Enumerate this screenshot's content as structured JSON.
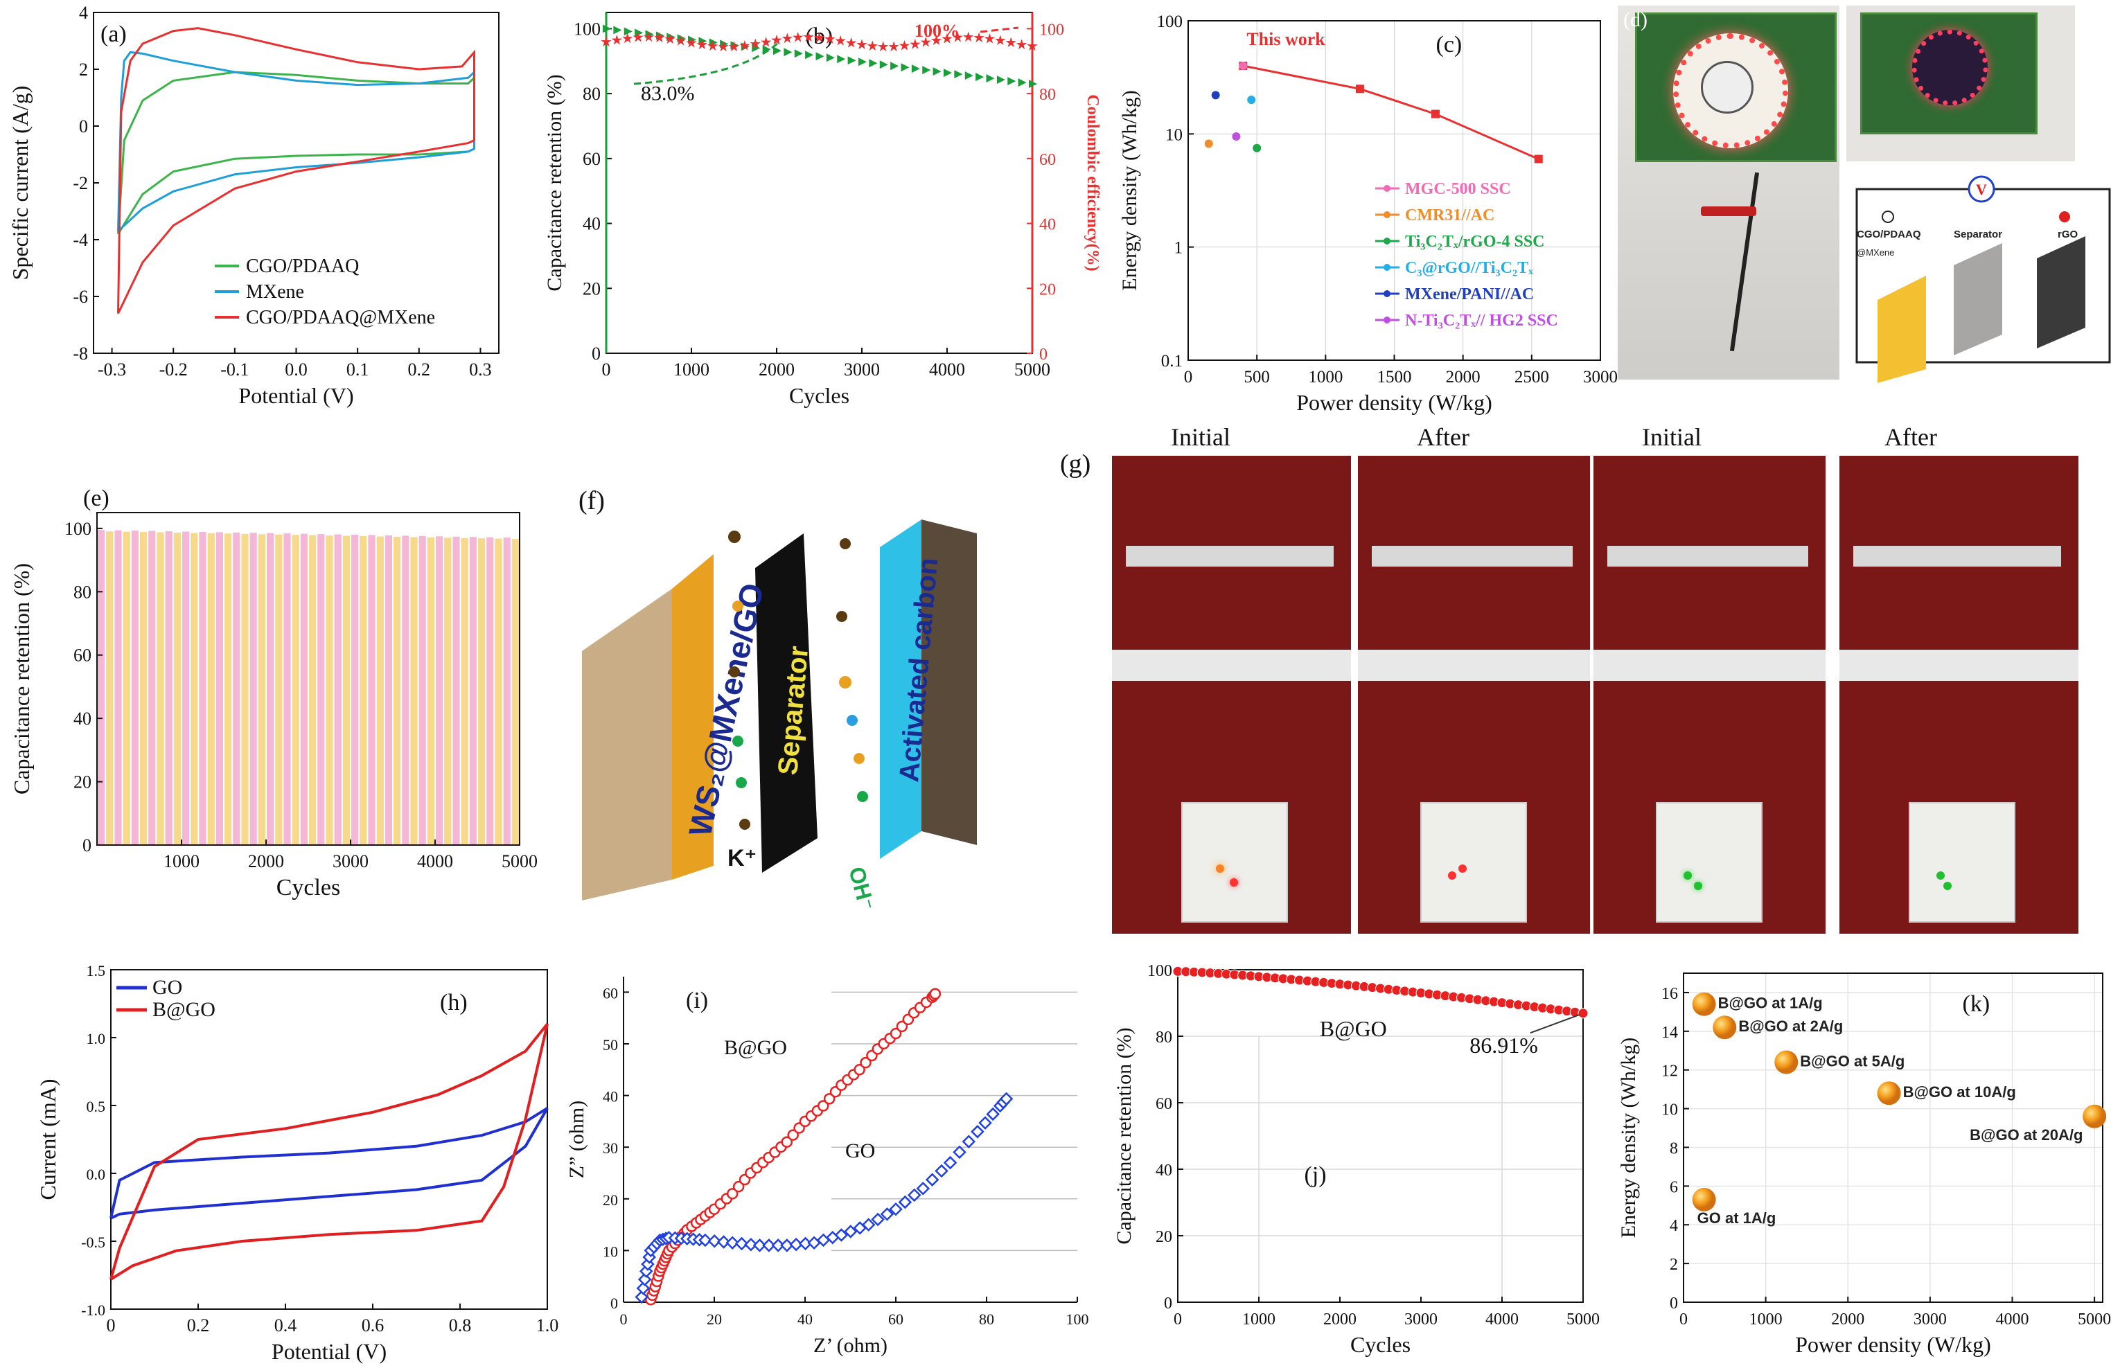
{
  "charts": {
    "a": {
      "label": "(a)",
      "chart_data": {
        "type": "line",
        "title": "",
        "xlabel": "Potential (V)",
        "ylabel": "Specific current (A/g)",
        "xlim": [
          -0.3,
          0.3
        ],
        "ylim": [
          -8,
          4
        ],
        "xticks": [
          "-0.3",
          "-0.2",
          "-0.1",
          "0.0",
          "0.1",
          "0.2",
          "0.3"
        ],
        "yticks": [
          "-8",
          "-6",
          "-4",
          "-2",
          "0",
          "2",
          "4"
        ],
        "series": [
          {
            "name": "CGO/PDAAQ",
            "color": "#3cb44b",
            "x": [
              -0.29,
              -0.28,
              -0.25,
              -0.2,
              -0.1,
              0.0,
              0.1,
              0.2,
              0.28,
              0.29,
              0.29,
              0.28,
              0.2,
              0.1,
              0.0,
              -0.1,
              -0.2,
              -0.25,
              -0.29
            ],
            "y": [
              -3.8,
              -0.5,
              0.9,
              1.6,
              1.9,
              1.8,
              1.6,
              1.5,
              1.5,
              1.7,
              -0.8,
              -0.9,
              -1.0,
              -1.0,
              -1.05,
              -1.15,
              -1.6,
              -2.4,
              -3.8
            ]
          },
          {
            "name": "MXene",
            "color": "#1e9fd8",
            "x": [
              -0.29,
              -0.285,
              -0.28,
              -0.27,
              -0.25,
              -0.2,
              -0.1,
              0.0,
              0.1,
              0.2,
              0.28,
              0.29,
              0.29,
              0.28,
              0.2,
              0.1,
              0.0,
              -0.1,
              -0.2,
              -0.25,
              -0.29
            ],
            "y": [
              -3.7,
              1.0,
              2.3,
              2.6,
              2.55,
              2.3,
              1.9,
              1.6,
              1.45,
              1.5,
              1.7,
              1.9,
              -0.8,
              -0.9,
              -1.1,
              -1.3,
              -1.45,
              -1.7,
              -2.3,
              -2.9,
              -3.7
            ]
          },
          {
            "name": "CGO/PDAAQ@MXene",
            "color": "#e83030",
            "x": [
              -0.29,
              -0.285,
              -0.27,
              -0.25,
              -0.2,
              -0.16,
              -0.1,
              0.0,
              0.1,
              0.2,
              0.27,
              0.29,
              0.29,
              0.28,
              0.2,
              0.1,
              0.0,
              -0.1,
              -0.2,
              -0.25,
              -0.29
            ],
            "y": [
              -6.6,
              0.5,
              2.3,
              2.9,
              3.35,
              3.45,
              3.2,
              2.7,
              2.25,
              2.0,
              2.1,
              2.6,
              -0.5,
              -0.6,
              -0.9,
              -1.25,
              -1.6,
              -2.2,
              -3.5,
              -4.8,
              -6.6
            ]
          }
        ]
      }
    },
    "b": {
      "label": "(b)",
      "chart_data": {
        "type": "scatter",
        "xlabel": "Cycles",
        "ylabel": "Capacitance retention (%)",
        "y2label": "Coulombic efficiency(%)",
        "xlim": [
          0,
          5000
        ],
        "ylim": [
          0,
          105
        ],
        "y2lim": [
          0,
          105
        ],
        "xticks": [
          "0",
          "1000",
          "2000",
          "3000",
          "4000",
          "5000"
        ],
        "yticks": [
          "0",
          "20",
          "40",
          "60",
          "80",
          "100"
        ],
        "annotations": [
          "83.0%",
          "100%"
        ],
        "series": [
          {
            "name": "Capacitance retention",
            "color": "#1a9e3a",
            "marker": "triangle",
            "x": [
              0,
              500,
              1000,
              1500,
              2000,
              2500,
              3000,
              3500,
              4000,
              4500,
              5000
            ],
            "y": [
              100,
              98,
              96,
              94,
              93,
              92,
              90,
              88,
              86,
              85,
              83
            ]
          },
          {
            "name": "Coulombic efficiency",
            "color": "#e83030",
            "marker": "star",
            "x": [
              0,
              500,
              1000,
              1500,
              2000,
              2500,
              3000,
              3500,
              4000,
              4500,
              5000
            ],
            "y": [
              99,
              97,
              96,
              95,
              95,
              96,
              97,
              96,
              96,
              96,
              96
            ]
          }
        ]
      }
    },
    "c": {
      "label": "(c)",
      "chart_data": {
        "type": "scatter",
        "xlabel": "Power density (W/kg)",
        "ylabel": "Energy density (Wh/kg)",
        "xlim": [
          0,
          3000
        ],
        "ylim_log": [
          0.1,
          100
        ],
        "xticks": [
          "0",
          "500",
          "1000",
          "1500",
          "2000",
          "2500",
          "3000"
        ],
        "yticks": [
          "0.1",
          "1",
          "10",
          "100"
        ],
        "this_work_label": "This work",
        "this_work": {
          "x": [
            400,
            1250,
            1800,
            2550
          ],
          "y": [
            40,
            25,
            15,
            6
          ]
        },
        "others": [
          {
            "name": "MGC-500 SSC",
            "color": "#f06ab4",
            "x": 400,
            "y": 40
          },
          {
            "name": "CMR31//AC",
            "color": "#f08c2a",
            "x": 150,
            "y": 8.2
          },
          {
            "name": "Ti₃C₂Tₓ/rGO-4 SSC",
            "color": "#1ea84a",
            "x": 500,
            "y": 7.5
          },
          {
            "name": "C₃@rGO//Ti₃C₂Tₓ",
            "color": "#22aee8",
            "x": 460,
            "y": 20
          },
          {
            "name": "MXene/PANI//AC",
            "color": "#1f3fbf",
            "x": 200,
            "y": 22
          },
          {
            "name": "N-Ti₃C₂Tₓ// HG2 SSC",
            "color": "#c04ee0",
            "x": 350,
            "y": 9.5
          }
        ]
      }
    },
    "e": {
      "label": "(e)",
      "chart_data": {
        "type": "bar",
        "xlabel": "Cycles",
        "ylabel": "Capacitance retention (%)",
        "xlim": [
          0,
          5000
        ],
        "ylim": [
          0,
          105
        ],
        "xticks": [
          "1000",
          "2000",
          "3000",
          "4000",
          "5000"
        ],
        "yticks": [
          "0",
          "20",
          "40",
          "60",
          "80",
          "100"
        ],
        "colors": [
          "#f4b8d6",
          "#f6d98a"
        ],
        "x": [
          100,
          300,
          500,
          700,
          900,
          1100,
          1300,
          1500,
          1700,
          1900,
          2100,
          2300,
          2500,
          2700,
          2900,
          3100,
          3300,
          3500,
          3700,
          3900,
          4100,
          4300,
          4500,
          4700,
          4900
        ],
        "values": [
          99.5,
          99.4,
          99.3,
          99.2,
          99.1,
          99.0,
          98.9,
          98.8,
          98.7,
          98.6,
          98.5,
          98.4,
          98.3,
          98.2,
          98.1,
          98.0,
          97.9,
          97.8,
          97.7,
          97.6,
          97.5,
          97.4,
          97.3,
          97.2,
          97.1
        ]
      }
    },
    "h": {
      "label": "(h)",
      "chart_data": {
        "type": "line",
        "xlabel": "Potential (V)",
        "ylabel": "Current (mA)",
        "xlim": [
          0,
          1.0
        ],
        "ylim": [
          -1.0,
          1.5
        ],
        "xticks": [
          "0",
          "0.2",
          "0.4",
          "0.6",
          "0.8",
          "1.0"
        ],
        "yticks": [
          "-1.0",
          "-0.5",
          "0.0",
          "0.5",
          "1.0",
          "1.5"
        ],
        "series": [
          {
            "name": "GO",
            "color": "#2030d0",
            "x": [
              0,
              0.02,
              0.1,
              0.3,
              0.5,
              0.7,
              0.85,
              0.95,
              1.0,
              1.0,
              0.95,
              0.85,
              0.7,
              0.5,
              0.3,
              0.1,
              0.02,
              0
            ],
            "y": [
              -0.33,
              -0.05,
              0.08,
              0.12,
              0.15,
              0.2,
              0.28,
              0.38,
              0.48,
              0.48,
              0.2,
              -0.05,
              -0.12,
              -0.17,
              -0.22,
              -0.27,
              -0.3,
              -0.33
            ]
          },
          {
            "name": "B@GO",
            "color": "#e02020",
            "x": [
              0,
              0.02,
              0.1,
              0.2,
              0.4,
              0.6,
              0.75,
              0.85,
              0.95,
              1.0,
              1.0,
              0.95,
              0.9,
              0.85,
              0.7,
              0.5,
              0.3,
              0.15,
              0.05,
              0
            ],
            "y": [
              -0.78,
              -0.55,
              0.05,
              0.25,
              0.33,
              0.45,
              0.58,
              0.72,
              0.9,
              1.1,
              1.1,
              0.4,
              -0.1,
              -0.35,
              -0.42,
              -0.45,
              -0.5,
              -0.57,
              -0.68,
              -0.78
            ]
          }
        ]
      }
    },
    "i": {
      "label": "(i)",
      "chart_data": {
        "type": "scatter",
        "xlabel": "Z’ (ohm)",
        "ylabel": "Z” (ohm)",
        "xlim": [
          0,
          100
        ],
        "ylim": [
          0,
          63
        ],
        "xticks": [
          "0",
          "20",
          "40",
          "60",
          "80",
          "100"
        ],
        "yticks": [
          "0",
          "10",
          "20",
          "30",
          "40",
          "50",
          "60"
        ],
        "series": [
          {
            "name": "B@GO",
            "color": "#e82020",
            "x": [
              6,
              7,
              8,
              9,
              10,
              12,
              14,
              17,
              20,
              24,
              28,
              32,
              36,
              40,
              44,
              48,
              52,
              56,
              60,
              64,
              68,
              69
            ],
            "y": [
              0.5,
              3,
              6,
              8,
              10,
              12,
              14,
              16,
              18,
              21,
              25,
              28,
              31,
              35,
              38,
              42,
              45,
              49,
              52,
              56,
              59,
              60
            ]
          },
          {
            "name": "GO",
            "color": "#2040e0",
            "x": [
              4,
              5,
              6,
              8,
              10,
              14,
              18,
              24,
              30,
              36,
              42,
              48,
              54,
              60,
              66,
              72,
              78,
              83,
              85
            ],
            "y": [
              1,
              6,
              10,
              12,
              12.5,
              12.3,
              12,
              11.5,
              11,
              11,
              11.5,
              13,
              15,
              18,
              22,
              27,
              33,
              38,
              40
            ]
          }
        ],
        "series_labels": [
          "B@GO",
          "GO"
        ]
      }
    },
    "j": {
      "label": "(j)",
      "chart_data": {
        "type": "scatter",
        "xlabel": "Cycles",
        "ylabel": "Capacitance retention (%)",
        "xlim": [
          0,
          5000
        ],
        "ylim": [
          0,
          100
        ],
        "xticks": [
          "0",
          "1000",
          "2000",
          "3000",
          "4000",
          "5000"
        ],
        "yticks": [
          "0",
          "20",
          "40",
          "60",
          "80",
          "100"
        ],
        "series_label": "B@GO",
        "annotation": "86.91%",
        "x": [
          0,
          200,
          400,
          600,
          800,
          1000,
          1200,
          1400,
          1600,
          1800,
          2000,
          2200,
          2400,
          2600,
          2800,
          3000,
          3200,
          3400,
          3600,
          3800,
          4000,
          4200,
          4400,
          4600,
          4800,
          5000
        ],
        "y": [
          99.5,
          99.2,
          98.9,
          98.5,
          98.1,
          97.7,
          97.2,
          96.7,
          96.2,
          95.6,
          95.0,
          94.4,
          93.8,
          93.2,
          92.6,
          92.0,
          91.4,
          90.8,
          90.2,
          89.6,
          89.0,
          88.5,
          88.0,
          87.5,
          87.1,
          86.91
        ]
      }
    },
    "k": {
      "label": "(k)",
      "chart_data": {
        "type": "scatter",
        "xlabel": "Power density (W/kg)",
        "ylabel": "Energy density (Wh/kg)",
        "xlim": [
          0,
          5100
        ],
        "ylim": [
          0,
          17
        ],
        "xticks": [
          "0",
          "1000",
          "2000",
          "3000",
          "4000",
          "5000"
        ],
        "yticks": [
          "0",
          "2",
          "4",
          "6",
          "8",
          "10",
          "12",
          "14",
          "16"
        ],
        "points": [
          {
            "label": "B@GO at 1A/g",
            "x": 250,
            "y": 15.4
          },
          {
            "label": "B@GO at 2A/g",
            "x": 500,
            "y": 14.2
          },
          {
            "label": "B@GO at 5A/g",
            "x": 1250,
            "y": 12.4
          },
          {
            "label": "B@GO at 10A/g",
            "x": 2500,
            "y": 10.8
          },
          {
            "label": "B@GO at 20A/g",
            "x": 5000,
            "y": 9.6
          },
          {
            "label": "GO at 1A/g",
            "x": 250,
            "y": 5.3
          }
        ]
      }
    }
  },
  "panel_d": {
    "label": "(d)",
    "volt_symbol": "V",
    "anode": "CGO/PDAAQ",
    "anode_sub": "@MXene",
    "separator": "Separator",
    "cathode": "rGO"
  },
  "panel_f": {
    "label": "(f)",
    "left": "WS₂@MXene/GO",
    "center": "Separator",
    "right": "Activated carbon",
    "k_ion": "K⁺",
    "oh_ion": "OH⁻"
  },
  "panel_g": {
    "label": "(g)",
    "captions": [
      "Initial",
      "After",
      "Initial",
      "After"
    ]
  },
  "colors": {
    "green": "#3cb44b",
    "blue": "#1e9fd8",
    "red": "#e83030"
  }
}
